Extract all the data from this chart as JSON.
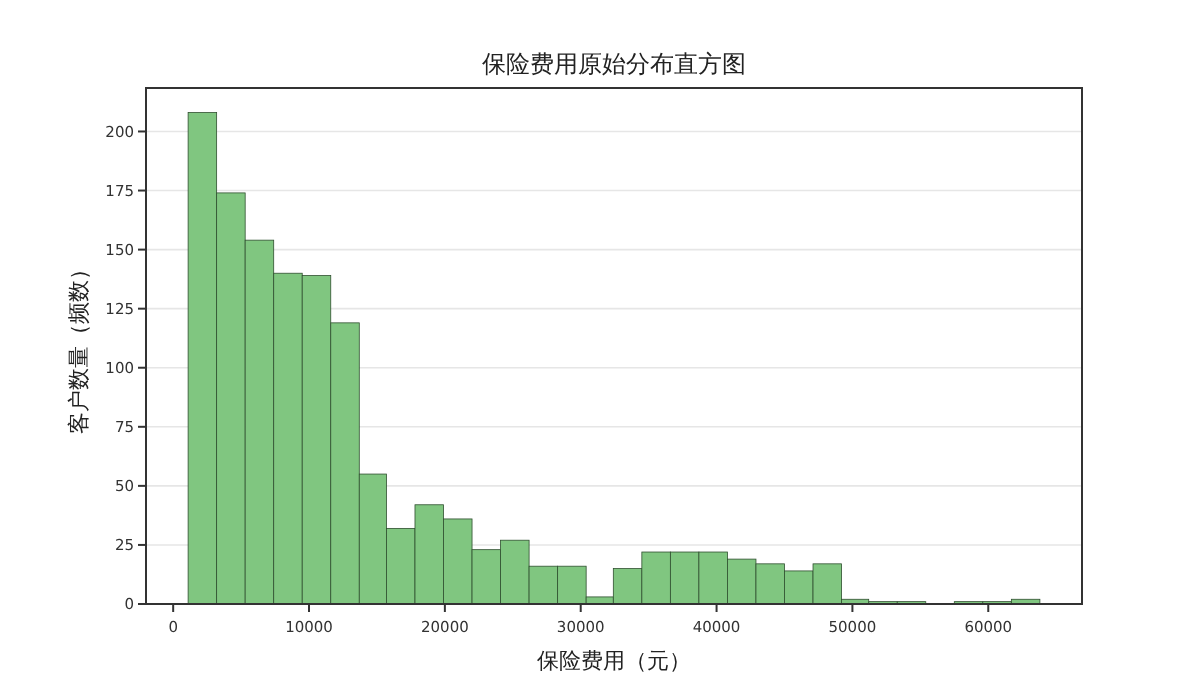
{
  "chart_data": {
    "type": "histogram",
    "title": "保险费用原始分布直方图",
    "xlabel": "保险费用（元）",
    "ylabel": "客户数量（频数）",
    "bins": [
      1100,
      3200,
      5300,
      7400,
      9500,
      11600,
      13700,
      15700,
      17800,
      19900,
      22000,
      24100,
      26200,
      28300,
      30400,
      32400,
      34500,
      36600,
      38700,
      40800,
      42900,
      45000,
      47100,
      49200,
      51200,
      53300,
      55400,
      57500,
      59600,
      61700,
      63800
    ],
    "values": [
      208,
      174,
      154,
      140,
      139,
      119,
      55,
      32,
      42,
      36,
      23,
      27,
      16,
      16,
      3,
      15,
      22,
      22,
      22,
      19,
      17,
      14,
      17,
      2,
      1,
      1,
      0,
      1,
      1,
      2
    ],
    "color": "#80c680",
    "xlim": [
      -2000,
      66900
    ],
    "ylim": [
      0,
      218.4
    ],
    "xticks": [
      0,
      10000,
      20000,
      30000,
      40000,
      50000,
      60000
    ],
    "yticks": [
      0,
      25,
      50,
      75,
      100,
      125,
      150,
      175,
      200
    ],
    "grid": "y"
  }
}
